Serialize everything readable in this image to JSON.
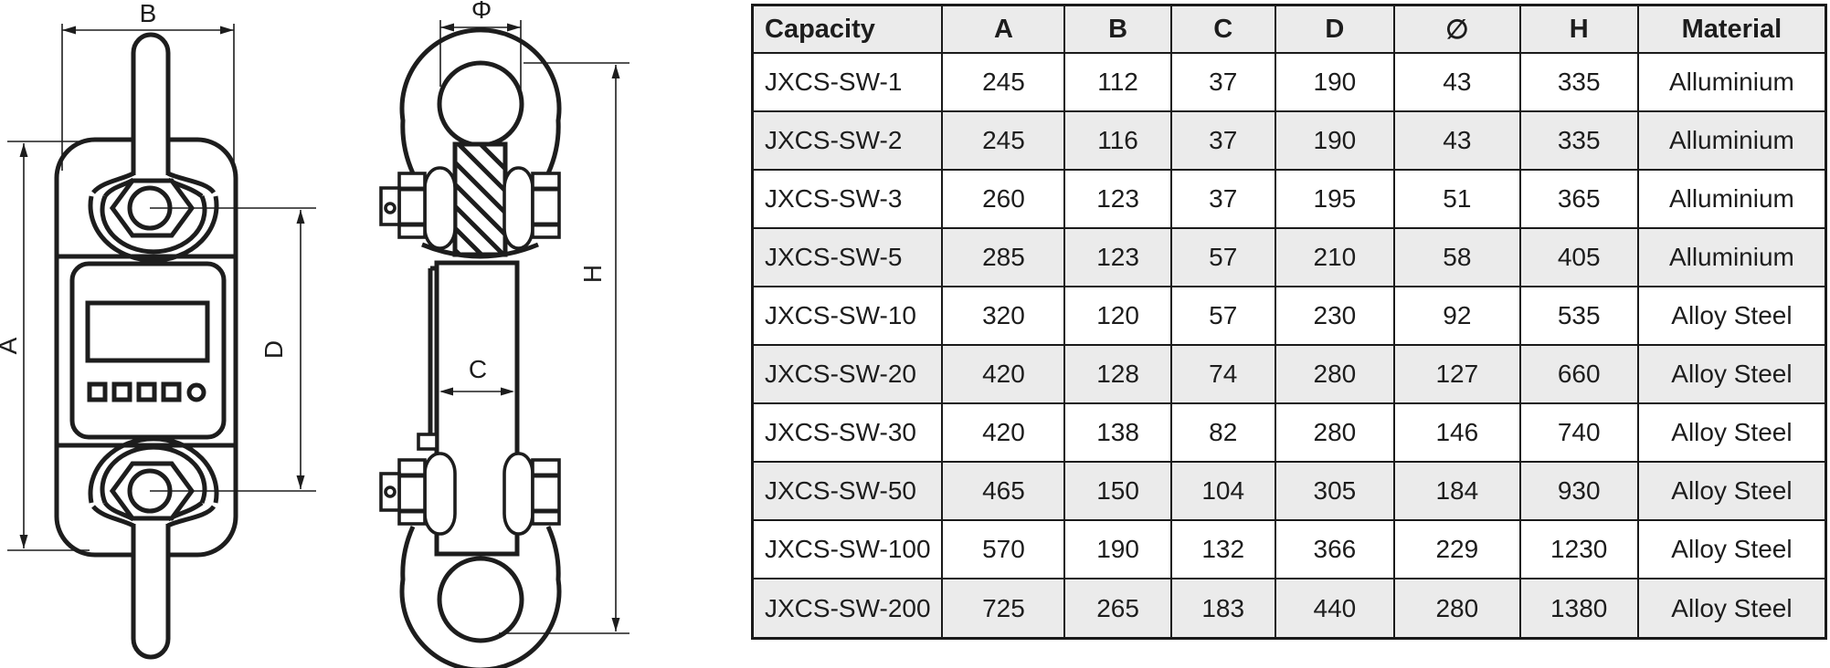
{
  "drawings": {
    "front_view": {
      "dim_b": "B",
      "dim_a": "A",
      "dim_d": "D"
    },
    "side_view": {
      "dim_phi": "Φ",
      "dim_c": "C",
      "dim_h": "H"
    }
  },
  "table": {
    "columns": [
      "Capacity",
      "A",
      "B",
      "C",
      "D",
      "∅",
      "H",
      "Material"
    ],
    "col_widths_pct": [
      17.7,
      11.4,
      9.9,
      9.7,
      11.1,
      11.7,
      11.0,
      17.5
    ],
    "rows": [
      [
        "JXCS-SW-1",
        "245",
        "112",
        "37",
        "190",
        "43",
        "335",
        "Alluminium"
      ],
      [
        "JXCS-SW-2",
        "245",
        "116",
        "37",
        "190",
        "43",
        "335",
        "Alluminium"
      ],
      [
        "JXCS-SW-3",
        "260",
        "123",
        "37",
        "195",
        "51",
        "365",
        "Alluminium"
      ],
      [
        "JXCS-SW-5",
        "285",
        "123",
        "57",
        "210",
        "58",
        "405",
        "Alluminium"
      ],
      [
        "JXCS-SW-10",
        "320",
        "120",
        "57",
        "230",
        "92",
        "535",
        "Alloy Steel"
      ],
      [
        "JXCS-SW-20",
        "420",
        "128",
        "74",
        "280",
        "127",
        "660",
        "Alloy Steel"
      ],
      [
        "JXCS-SW-30",
        "420",
        "138",
        "82",
        "280",
        "146",
        "740",
        "Alloy Steel"
      ],
      [
        "JXCS-SW-50",
        "465",
        "150",
        "104",
        "305",
        "184",
        "930",
        "Alloy Steel"
      ],
      [
        "JXCS-SW-100",
        "570",
        "190",
        "132",
        "366",
        "229",
        "1230",
        "Alloy Steel"
      ],
      [
        "JXCS-SW-200",
        "725",
        "265",
        "183",
        "440",
        "280",
        "1380",
        "Alloy Steel"
      ]
    ]
  },
  "colors": {
    "ink": "#1d1d1d",
    "row_alt": "#ebebeb",
    "row_base": "#ffffff"
  }
}
